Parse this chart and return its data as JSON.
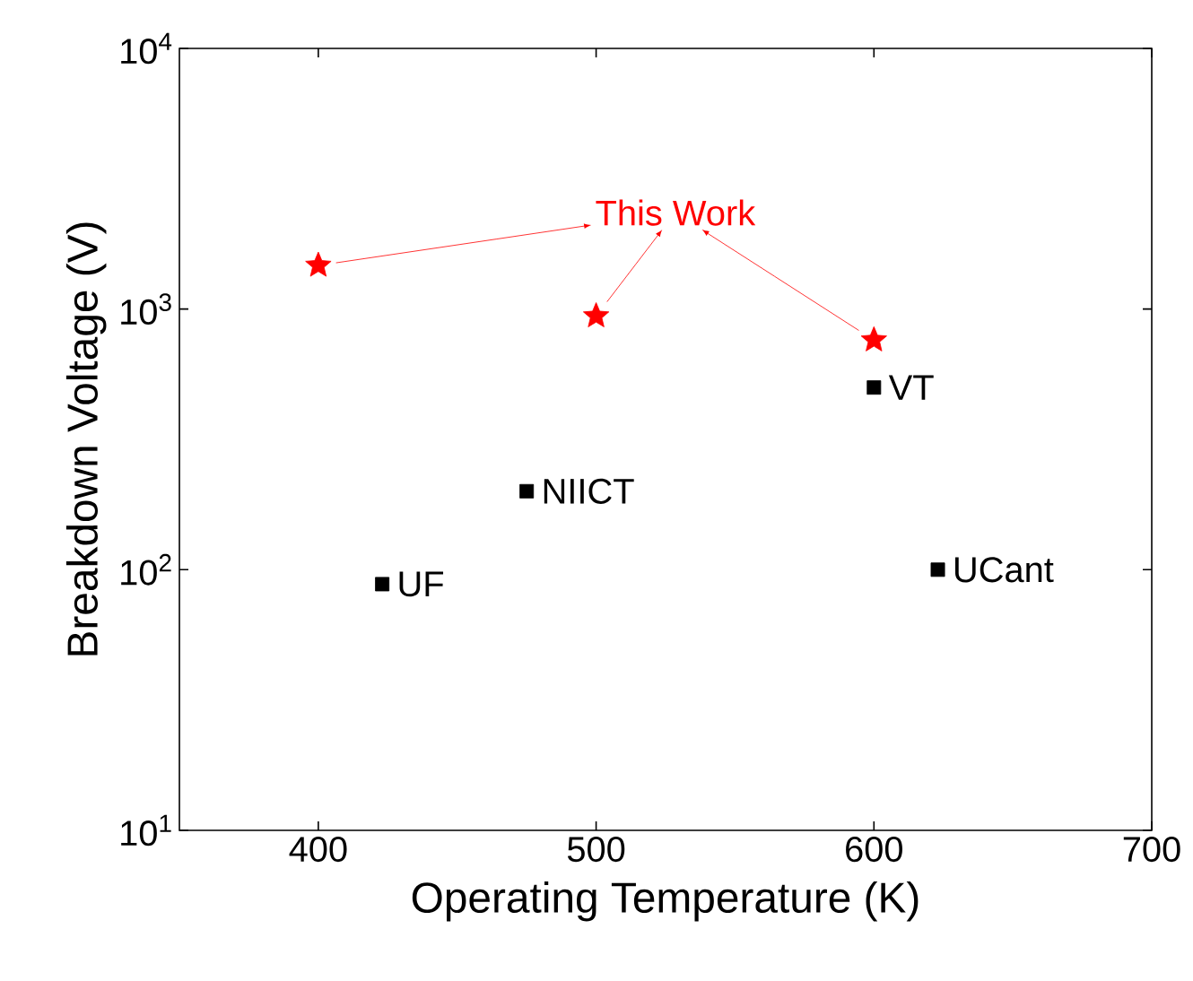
{
  "chart_data": {
    "type": "scatter",
    "xlabel": "Operating Temperature (K)",
    "ylabel": "Breakdown Voltage (V)",
    "log": "y",
    "xlim": [
      350,
      700
    ],
    "xticks": [
      400,
      500,
      600,
      700
    ],
    "ylim": [
      10,
      10000
    ],
    "yticks": [
      {
        "value": 10,
        "label": "10$^{1}$"
      },
      {
        "value": 100,
        "label": "10$^{2}$"
      },
      {
        "value": 1000,
        "label": "10$^{3}$"
      },
      {
        "value": 10000,
        "label": "10$^{4}$"
      }
    ],
    "series": [
      {
        "color": "#ff0000",
        "marker": "star",
        "x": [
          400,
          500,
          600
        ],
        "values": [
          1470,
          940,
          760
        ]
      },
      {
        "color": "#000000",
        "marker": "square",
        "x": [
          423,
          475,
          600,
          623
        ],
        "values": [
          88,
          200,
          500,
          100
        ]
      }
    ],
    "annotations": [
      "This Work",
      {
        "text": "UF",
        "x": 423,
        "y": 88
      },
      {
        "text": "NIICT",
        "x": 475,
        "y": 200
      },
      {
        "text": "VT",
        "x": 600,
        "y": 500
      },
      {
        "text": "UCant",
        "x": 623,
        "y": 100
      }
    ],
    "grid": false
  }
}
